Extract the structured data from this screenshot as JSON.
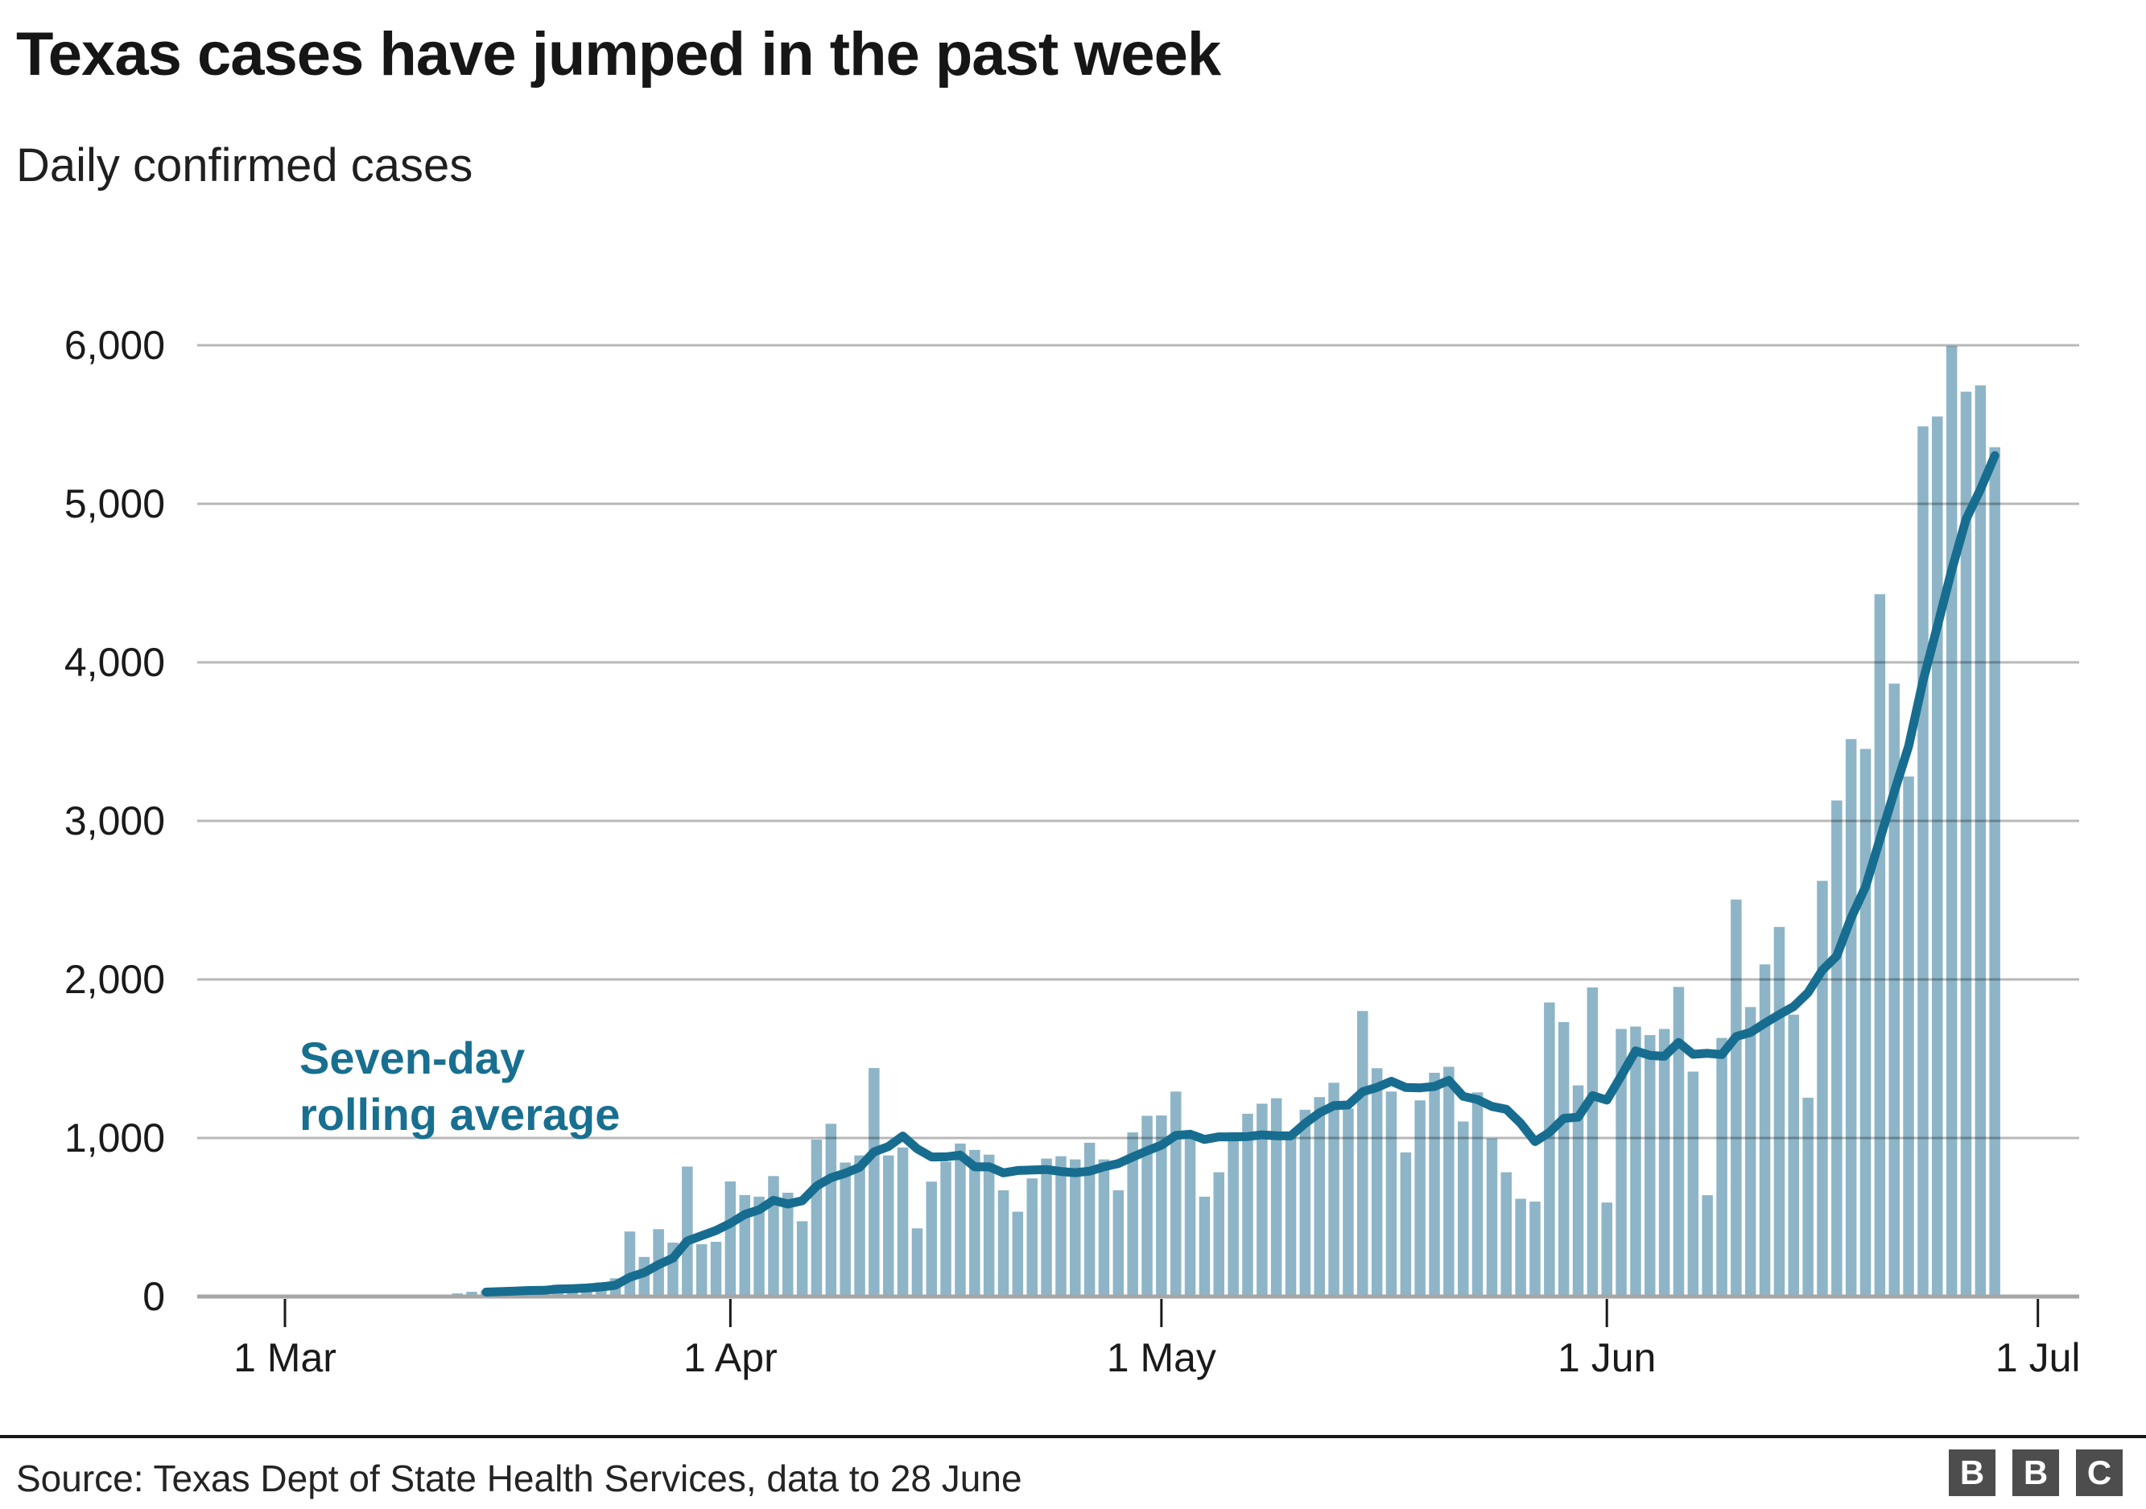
{
  "header": {},
  "annotation": {
    "line1": "Seven-day",
    "line2": "rolling average"
  },
  "footer": {
    "source": "Source: Texas Dept of State Health Services, data to 28 June",
    "logo_letters": {
      "b1": "B",
      "b2": "B",
      "b3": "C"
    }
  },
  "colors": {
    "bar": "#8DB5C7",
    "line": "#176D90",
    "annotation": "#186F90",
    "grid": "rgba(0,0,0,0.28)",
    "baseline": "#a6a6a6",
    "tick": "#1a1a1a",
    "title": "#161616",
    "logo_square": "#4d4d4d"
  },
  "chart_data": {
    "type": "bar",
    "title": "Texas cases have jumped in the past week",
    "subtitle": "Daily confirmed cases",
    "grid": "horizontal",
    "legend_position": "inline-annotation",
    "x": {
      "axis_start_label": "1 Mar",
      "tick_labels": [
        "1 Mar",
        "1 Apr",
        "1 May",
        "1 Jun",
        "1 Jul"
      ],
      "tick_day_offsets": [
        0,
        31,
        61,
        92,
        122
      ],
      "first_bar_day_offset": 12,
      "first_bar_date": "13 Mar",
      "last_bar_date": "28 Jun"
    },
    "y": {
      "min": 0,
      "max": 6000,
      "ticks": [
        0,
        1000,
        2000,
        3000,
        4000,
        5000,
        6000
      ],
      "tick_labels": [
        "0",
        "1,000",
        "2,000",
        "3,000",
        "4,000",
        "5,000",
        "6,000"
      ]
    },
    "series": [
      {
        "name": "Daily confirmed cases",
        "type": "bar",
        "values": [
          20,
          30,
          35,
          40,
          45,
          55,
          50,
          75,
          50,
          65,
          90,
          115,
          410,
          250,
          425,
          340,
          820,
          330,
          345,
          726,
          640,
          630,
          760,
          655,
          475,
          990,
          1090,
          845,
          890,
          1441,
          890,
          940,
          430,
          725,
          850,
          965,
          925,
          895,
          670,
          535,
          745,
          870,
          885,
          865,
          970,
          865,
          670,
          1035,
          1140,
          1142,
          1293,
          1026,
          630,
          784,
          1037,
          1153,
          1216,
          1251,
          1022,
          1178,
          1258,
          1348,
          1186,
          1801,
          1440,
          1293,
          909,
          1237,
          1411,
          1449,
          1104,
          1288,
          997,
          784,
          617,
          599,
          1855,
          1731,
          1332,
          1949,
          593,
          1688,
          1703,
          1649,
          1688,
          1953,
          1419,
          639,
          1631,
          2504,
          1826,
          2095,
          2331,
          1778,
          1254,
          2622,
          3129,
          3516,
          3454,
          4430,
          3866,
          3280,
          5489,
          5551,
          5996,
          5707,
          5747,
          5357
        ]
      },
      {
        "name": "Seven-day rolling average",
        "type": "line",
        "draw_from_index": 2,
        "values": [
          20,
          25,
          28,
          31,
          34,
          38,
          39,
          47,
          50,
          54,
          61,
          71,
          122,
          151,
          201,
          242,
          350,
          384,
          417,
          462,
          518,
          547,
          607,
          584,
          604,
          697,
          749,
          778,
          815,
          912,
          946,
          1012,
          932,
          880,
          881,
          892,
          818,
          819,
          780,
          795,
          798,
          801,
          789,
          781,
          791,
          819,
          839,
          880,
          919,
          955,
          1016,
          1024,
          991,
          1007,
          1007,
          1009,
          1020,
          1014,
          1013,
          1092,
          1159,
          1204,
          1208,
          1292,
          1319,
          1358,
          1319,
          1316,
          1325,
          1363,
          1263,
          1242,
          1199,
          1181,
          1093,
          977,
          1035,
          1124,
          1131,
          1267,
          1239,
          1392,
          1550,
          1521,
          1515,
          1603,
          1528,
          1534,
          1526,
          1640,
          1666,
          1724,
          1778,
          1829,
          1917,
          2059,
          2148,
          2389,
          2583,
          2883,
          3182,
          3471,
          3881,
          4227,
          4581,
          4903,
          5091,
          5304
        ]
      }
    ]
  }
}
